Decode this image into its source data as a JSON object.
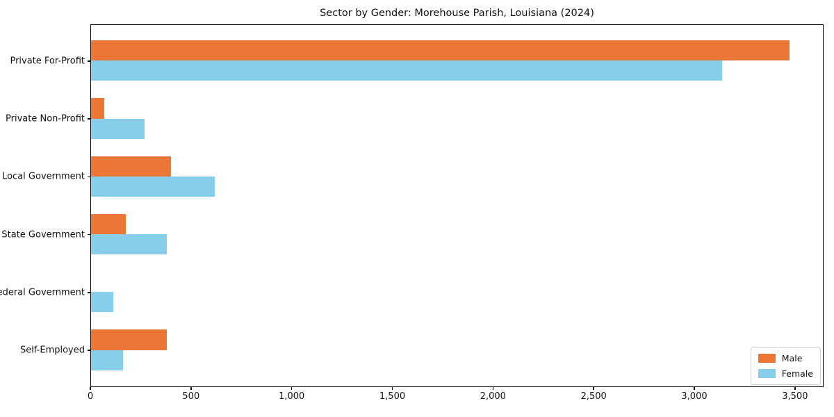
{
  "chart_data": {
    "type": "bar",
    "orientation": "horizontal",
    "title": "Sector by Gender: Morehouse Parish, Louisiana (2024)",
    "categories": [
      "Private For-Profit",
      "Private Non-Profit",
      "Local Government",
      "State Government",
      "Federal Government",
      "Self-Employed"
    ],
    "series": [
      {
        "name": "Male",
        "color": "#ec7636",
        "values": [
          3470,
          66,
          398,
          173,
          0,
          376
        ]
      },
      {
        "name": "Female",
        "color": "#87ceeb",
        "values": [
          3134,
          265,
          614,
          377,
          110,
          160
        ]
      }
    ],
    "xlabel": "",
    "ylabel": "",
    "xlim": [
      0,
      3642
    ],
    "x_ticks": [
      0,
      500,
      1000,
      1500,
      2000,
      2500,
      3000,
      3500
    ],
    "x_tick_labels": [
      "0",
      "500",
      "1,000",
      "1,500",
      "2,000",
      "2,500",
      "3,000",
      "3,500"
    ],
    "grid": false,
    "legend_position": "lower right",
    "bar_group_order": "male-above-female"
  },
  "colors": {
    "male": "#ec7636",
    "female": "#87ceeb",
    "spine": "#000000",
    "background": "#ffffff",
    "legend_border": "#cccccc"
  }
}
